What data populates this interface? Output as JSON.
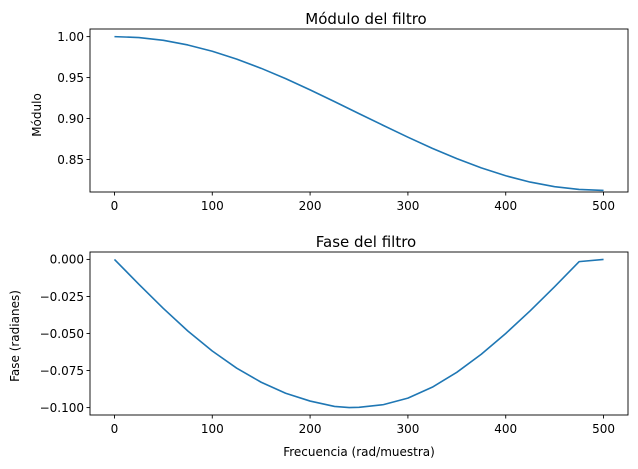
{
  "chart_data": [
    {
      "type": "line",
      "title": "Módulo del filtro",
      "xlabel": "",
      "ylabel": "Módulo",
      "xlim": [
        -25,
        525
      ],
      "ylim": [
        0.8103,
        1.0093
      ],
      "xticks": [
        0,
        100,
        200,
        300,
        400,
        500
      ],
      "xtick_labels": [
        "0",
        "100",
        "200",
        "300",
        "400",
        "500"
      ],
      "yticks": [
        0.85,
        0.9,
        0.95,
        1.0
      ],
      "ytick_labels": [
        "0.85",
        "0.90",
        "0.95",
        "1.00"
      ],
      "grid": false,
      "series": [
        {
          "color": "#1f77b4",
          "x": [
            0,
            25,
            50,
            75,
            100,
            125,
            150,
            175,
            200,
            225,
            250,
            275,
            300,
            325,
            350,
            375,
            400,
            425,
            450,
            475,
            500
          ],
          "y": [
            1.0,
            0.9989,
            0.9955,
            0.9898,
            0.9821,
            0.9725,
            0.9613,
            0.9487,
            0.935,
            0.9206,
            0.906,
            0.8915,
            0.8772,
            0.8636,
            0.851,
            0.8397,
            0.8301,
            0.8224,
            0.8168,
            0.8134,
            0.8122
          ]
        }
      ]
    },
    {
      "type": "line",
      "title": "Fase del filtro",
      "xlabel": "Frecuencia (rad/muestra)",
      "ylabel": "Fase (radianes)",
      "xlim": [
        -25,
        525
      ],
      "ylim": [
        -0.105,
        0.005
      ],
      "xticks": [
        0,
        100,
        200,
        300,
        400,
        500
      ],
      "xtick_labels": [
        "0",
        "100",
        "200",
        "300",
        "400",
        "500"
      ],
      "yticks": [
        0.0,
        -0.025,
        -0.05,
        -0.075,
        -0.1
      ],
      "ytick_labels": [
        "0.000",
        "−0.025",
        "−0.050",
        "−0.075",
        "−0.100"
      ],
      "grid": false,
      "series": [
        {
          "color": "#1f77b4",
          "x": [
            0,
            25,
            50,
            75,
            100,
            125,
            150,
            175,
            200,
            225,
            240,
            250,
            275,
            300,
            325,
            350,
            375,
            400,
            425,
            450,
            475,
            500
          ],
          "y": [
            0.0,
            -0.0168,
            -0.0331,
            -0.0483,
            -0.0618,
            -0.0734,
            -0.0829,
            -0.0903,
            -0.0956,
            -0.0992,
            -0.1,
            -0.0998,
            -0.098,
            -0.0936,
            -0.0862,
            -0.0762,
            -0.064,
            -0.05,
            -0.0347,
            -0.0184,
            -0.0015,
            0.0
          ]
        }
      ]
    }
  ]
}
